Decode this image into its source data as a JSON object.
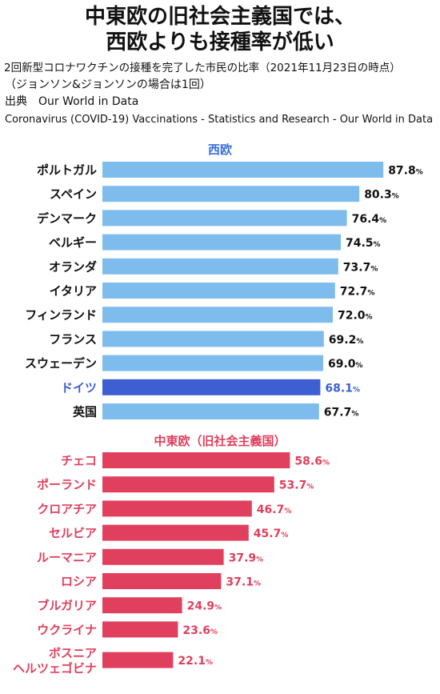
{
  "header": {
    "title_line1": "中東欧の旧社会主義国では、",
    "title_line2": "西欧よりも接種率が低い",
    "subtitle": "2回新型コロナワクチンの接種を完了した市民の比率（2021年11月23日の時点）",
    "note": "（ジョンソン&ジョンソンの場合は1回）",
    "source_label": "出典　Our World in Data",
    "source_url_text": "Coronavirus (COVID-19) Vaccinations - Statistics and Research - Our World in Data"
  },
  "chart_data": {
    "type": "bar",
    "orientation": "horizontal",
    "unit": "%",
    "groups": [
      {
        "name": "西欧",
        "color": "#7fbcee",
        "label_color": "#111111",
        "header_color": "#3a6fd8",
        "categories": [
          "ポルトガル",
          "スペイン",
          "デンマーク",
          "ベルギー",
          "オランダ",
          "イタリア",
          "フィンランド",
          "フランス",
          "スウェーデン",
          "ドイツ",
          "英国"
        ],
        "values": [
          87.8,
          80.3,
          76.4,
          74.5,
          73.7,
          72.7,
          72.0,
          69.2,
          69.0,
          68.1,
          67.7
        ],
        "highlight": {
          "category": "ドイツ",
          "color": "#3d5fd1",
          "label_color": "#3d5fd1"
        }
      },
      {
        "name": "中東欧（旧社会主義国）",
        "color": "#e0405e",
        "label_color": "#e0405e",
        "header_color": "#e0405e",
        "categories": [
          "チェコ",
          "ポーランド",
          "クロアチア",
          "セルビア",
          "ルーマニア",
          "ロシア",
          "ブルガリア",
          "ウクライナ",
          "ボスニア\nヘルツェゴビナ"
        ],
        "values": [
          58.6,
          53.7,
          46.7,
          45.7,
          37.9,
          37.1,
          24.9,
          23.6,
          22.1
        ]
      }
    ],
    "xlim": [
      0,
      100
    ],
    "grid": false,
    "legend": "none"
  }
}
